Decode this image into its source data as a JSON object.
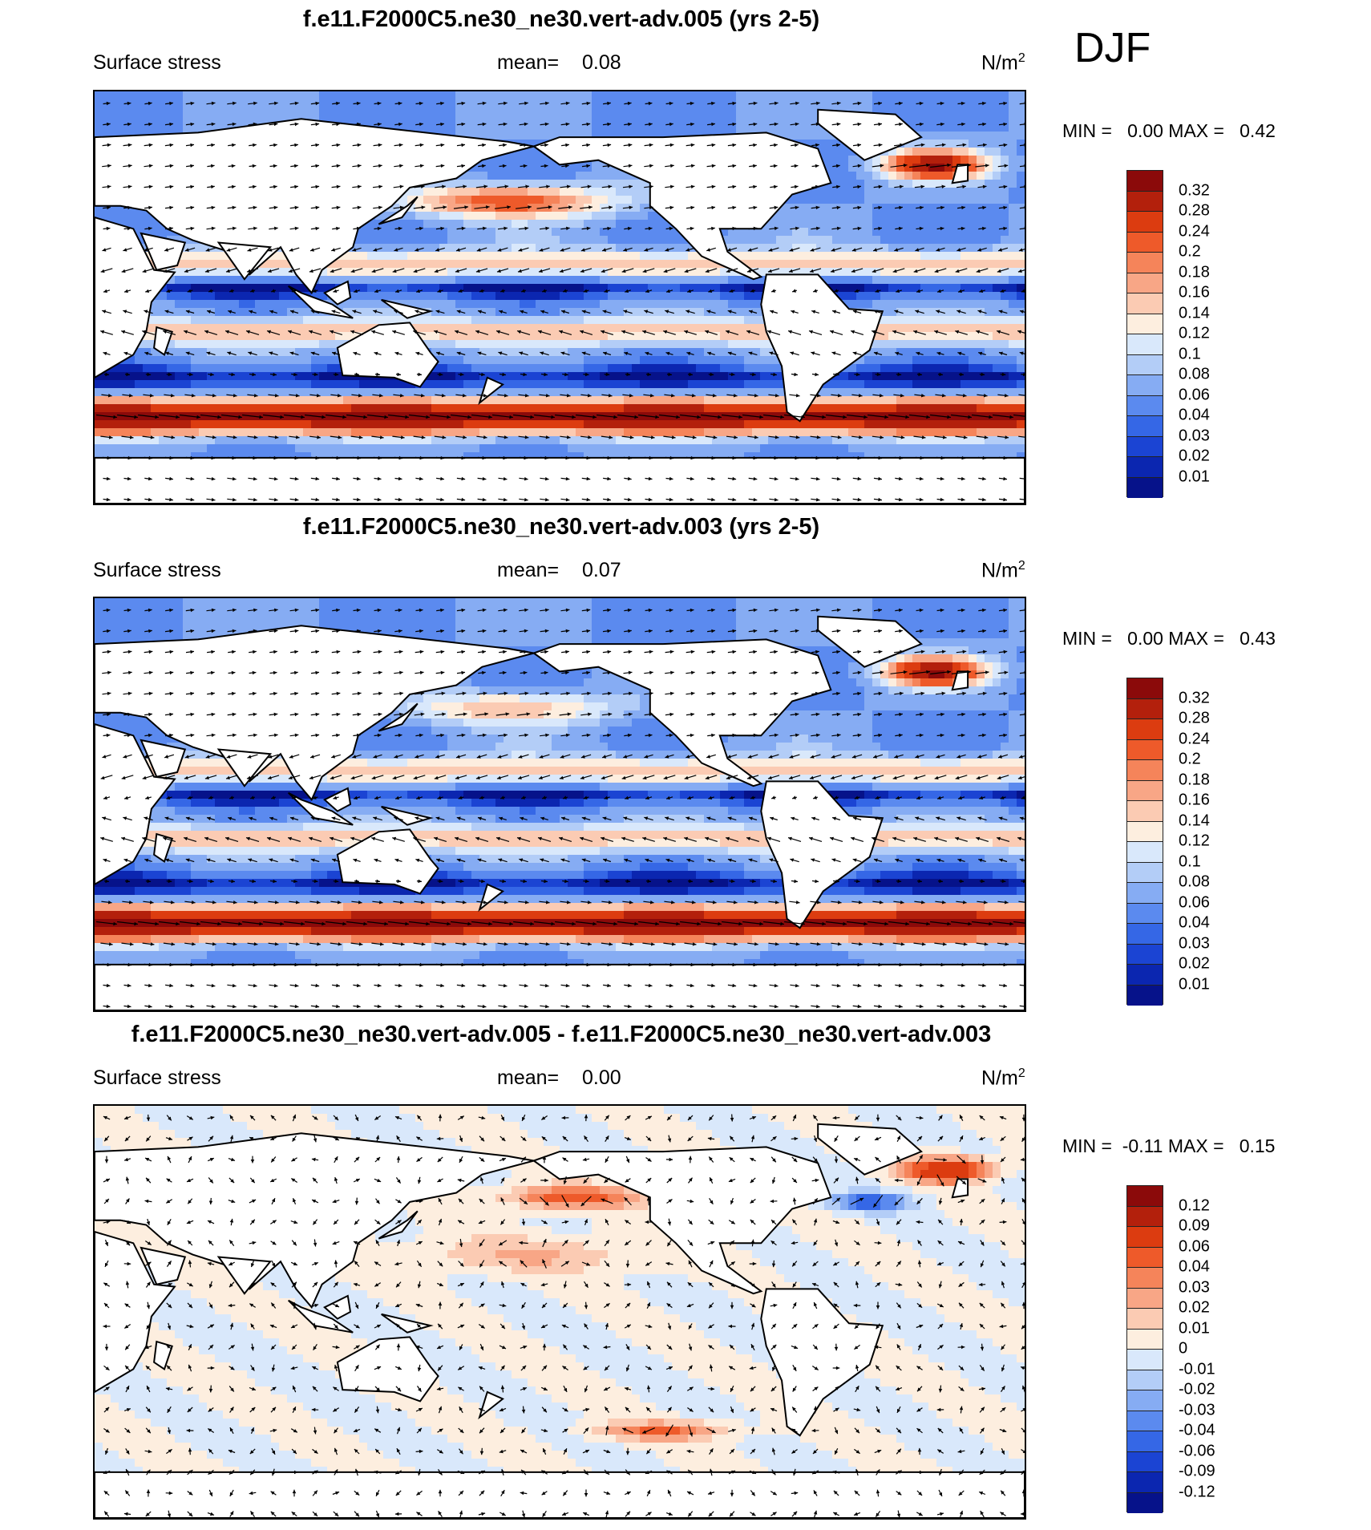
{
  "season": "DJF",
  "panels": [
    {
      "title": "f.e11.F2000C5.ne30_ne30.vert-adv.005 (yrs 2-5)",
      "variable": "Surface stress",
      "mean_label": "mean=",
      "mean_value": "0.08",
      "units_base": "N/m",
      "units_exp": "2",
      "minmax": "MIN =   0.00 MAX =   0.42",
      "colorbar_labels": [
        "0.32",
        "0.28",
        "0.24",
        "0.2",
        "0.18",
        "0.16",
        "0.14",
        "0.12",
        "0.1",
        "0.08",
        "0.06",
        "0.04",
        "0.03",
        "0.02",
        "0.01"
      ],
      "colorbar_colors": [
        "#8b0a0a",
        "#b3200c",
        "#dc3c10",
        "#ee5a2a",
        "#f5845a",
        "#f8a686",
        "#fbcbb3",
        "#fdeedf",
        "#d9e8fb",
        "#b3cdf7",
        "#86acf3",
        "#5b8aef",
        "#3567e6",
        "#1b44d3",
        "#0b26b0",
        "#06128a"
      ],
      "map_type": "magnitude"
    },
    {
      "title": "f.e11.F2000C5.ne30_ne30.vert-adv.003 (yrs 2-5)",
      "variable": "Surface stress",
      "mean_label": "mean=",
      "mean_value": "0.07",
      "units_base": "N/m",
      "units_exp": "2",
      "minmax": "MIN =   0.00 MAX =   0.43",
      "colorbar_labels": [
        "0.32",
        "0.28",
        "0.24",
        "0.2",
        "0.18",
        "0.16",
        "0.14",
        "0.12",
        "0.1",
        "0.08",
        "0.06",
        "0.04",
        "0.03",
        "0.02",
        "0.01"
      ],
      "colorbar_colors": [
        "#8b0a0a",
        "#b3200c",
        "#dc3c10",
        "#ee5a2a",
        "#f5845a",
        "#f8a686",
        "#fbcbb3",
        "#fdeedf",
        "#d9e8fb",
        "#b3cdf7",
        "#86acf3",
        "#5b8aef",
        "#3567e6",
        "#1b44d3",
        "#0b26b0",
        "#06128a"
      ],
      "map_type": "magnitude"
    },
    {
      "title": "f.e11.F2000C5.ne30_ne30.vert-adv.005 - f.e11.F2000C5.ne30_ne30.vert-adv.003",
      "variable": "Surface stress",
      "mean_label": "mean=",
      "mean_value": "0.00",
      "units_base": "N/m",
      "units_exp": "2",
      "minmax": "MIN =  -0.11 MAX =   0.15",
      "colorbar_labels": [
        "0.12",
        "0.09",
        "0.06",
        "0.04",
        "0.03",
        "0.02",
        "0.01",
        "0",
        "-0.01",
        "-0.02",
        "-0.03",
        "-0.04",
        "-0.06",
        "-0.09",
        "-0.12"
      ],
      "colorbar_colors": [
        "#8b0a0a",
        "#b3200c",
        "#dc3c10",
        "#ee5a2a",
        "#f5845a",
        "#f8a686",
        "#fbcbb3",
        "#fdeedf",
        "#d9e8fb",
        "#b3cdf7",
        "#86acf3",
        "#5b8aef",
        "#3567e6",
        "#1b44d3",
        "#0b26b0",
        "#06128a"
      ],
      "map_type": "difference"
    }
  ]
}
